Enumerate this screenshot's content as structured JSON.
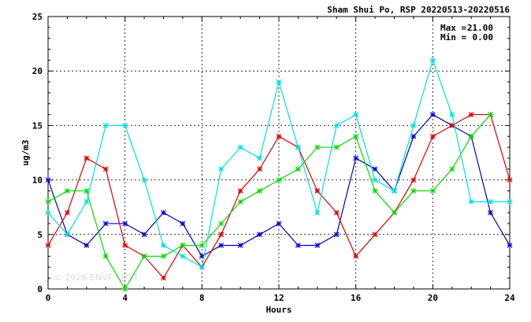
{
  "chart_data": {
    "type": "line",
    "title": "Sham Shui Po, RSP 20220513-20220516",
    "xlabel": "Hours",
    "ylabel": "ug/m3",
    "xlim": [
      0,
      24
    ],
    "ylim": [
      0,
      25
    ],
    "x_ticks": [
      0,
      4,
      8,
      12,
      16,
      20,
      24
    ],
    "y_ticks": [
      0,
      5,
      10,
      15,
      20,
      25
    ],
    "grid": true,
    "stats": {
      "max_label": "Max =",
      "max_value": "21.00",
      "min_label": "Min =",
      "min_value": "0.00"
    },
    "watermark": "© 2026  ENVF  CUST",
    "x": [
      0,
      1,
      2,
      3,
      4,
      5,
      6,
      7,
      8,
      9,
      10,
      11,
      12,
      13,
      14,
      15,
      16,
      17,
      18,
      19,
      20,
      21,
      22,
      23,
      24
    ],
    "series": [
      {
        "color": "#0000cc",
        "values": [
          10,
          5,
          4,
          6,
          6,
          5,
          7,
          6,
          3,
          4,
          4,
          5,
          6,
          4,
          4,
          5,
          12,
          11,
          9,
          14,
          16,
          15,
          14,
          7,
          4
        ]
      },
      {
        "color": "#dd0000",
        "values": [
          4,
          7,
          12,
          11,
          4,
          3,
          1,
          4,
          2,
          5,
          9,
          11,
          14,
          13,
          9,
          7,
          3,
          5,
          7,
          10,
          14,
          15,
          16,
          16,
          10
        ]
      },
      {
        "color": "#00dd00",
        "values": [
          8,
          9,
          9,
          3,
          0,
          3,
          3,
          4,
          4,
          6,
          8,
          9,
          10,
          11,
          13,
          13,
          14,
          9,
          7,
          9,
          9,
          11,
          14,
          16,
          null
        ]
      },
      {
        "color": "#00e0e0",
        "values": [
          7,
          5,
          8,
          15,
          15,
          10,
          4,
          3,
          2,
          11,
          13,
          12,
          19,
          13,
          7,
          15,
          16,
          10,
          9,
          15,
          21,
          16,
          8,
          8,
          8
        ]
      }
    ]
  }
}
